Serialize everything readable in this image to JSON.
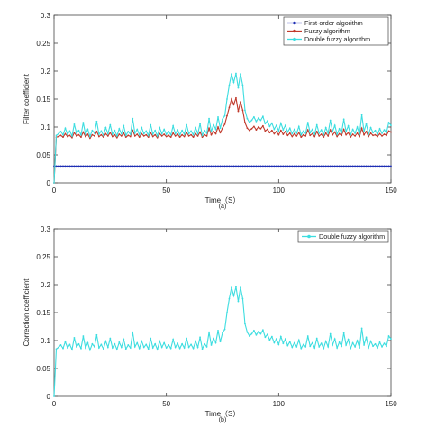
{
  "chart_data": [
    {
      "type": "line",
      "caption": "(a)",
      "xlabel": "Time（S）",
      "ylabel": "Filter coefficient",
      "xlim": [
        0,
        150
      ],
      "ylim": [
        0,
        0.3
      ],
      "xticks": [
        "0",
        "50",
        "100",
        "150"
      ],
      "yticks": [
        "0",
        "0.05",
        "0.1",
        "0.15",
        "0.2",
        "0.25",
        "0.3"
      ],
      "legend_position": "top-right",
      "x": [
        0,
        1,
        2,
        3,
        4,
        5,
        6,
        7,
        8,
        9,
        10,
        11,
        12,
        13,
        14,
        15,
        16,
        17,
        18,
        19,
        20,
        21,
        22,
        23,
        24,
        25,
        26,
        27,
        28,
        29,
        30,
        31,
        32,
        33,
        34,
        35,
        36,
        37,
        38,
        39,
        40,
        41,
        42,
        43,
        44,
        45,
        46,
        47,
        48,
        49,
        50,
        51,
        52,
        53,
        54,
        55,
        56,
        57,
        58,
        59,
        60,
        61,
        62,
        63,
        64,
        65,
        66,
        67,
        68,
        69,
        70,
        71,
        72,
        73,
        74,
        75,
        76,
        77,
        78,
        79,
        80,
        81,
        82,
        83,
        84,
        85,
        86,
        87,
        88,
        89,
        90,
        91,
        92,
        93,
        94,
        95,
        96,
        97,
        98,
        99,
        100,
        101,
        102,
        103,
        104,
        105,
        106,
        107,
        108,
        109,
        110,
        111,
        112,
        113,
        114,
        115,
        116,
        117,
        118,
        119,
        120,
        121,
        122,
        123,
        124,
        125,
        126,
        127,
        128,
        129,
        130,
        131,
        132,
        133,
        134,
        135,
        136,
        137,
        138,
        139,
        140,
        141,
        142,
        143,
        144,
        145,
        146,
        147,
        148,
        149,
        150
      ],
      "series": [
        {
          "name": "First-order algorithm",
          "color": "#1f2fb4",
          "marker": "dot",
          "values": [
            0.03,
            0.03,
            0.03,
            0.03,
            0.03,
            0.03,
            0.03,
            0.03,
            0.03,
            0.03,
            0.03,
            0.03,
            0.03,
            0.03,
            0.03,
            0.03,
            0.03,
            0.03,
            0.03,
            0.03,
            0.03,
            0.03,
            0.03,
            0.03,
            0.03,
            0.03,
            0.03,
            0.03,
            0.03,
            0.03,
            0.03,
            0.03,
            0.03,
            0.03,
            0.03,
            0.03,
            0.03,
            0.03,
            0.03,
            0.03,
            0.03,
            0.03,
            0.03,
            0.03,
            0.03,
            0.03,
            0.03,
            0.03,
            0.03,
            0.03,
            0.03,
            0.03,
            0.03,
            0.03,
            0.03,
            0.03,
            0.03,
            0.03,
            0.03,
            0.03,
            0.03,
            0.03,
            0.03,
            0.03,
            0.03,
            0.03,
            0.03,
            0.03,
            0.03,
            0.03,
            0.03,
            0.03,
            0.03,
            0.03,
            0.03,
            0.03,
            0.03,
            0.03,
            0.03,
            0.03,
            0.03,
            0.03,
            0.03,
            0.03,
            0.03,
            0.03,
            0.03,
            0.03,
            0.03,
            0.03,
            0.03,
            0.03,
            0.03,
            0.03,
            0.03,
            0.03,
            0.03,
            0.03,
            0.03,
            0.03,
            0.03,
            0.03,
            0.03,
            0.03,
            0.03,
            0.03,
            0.03,
            0.03,
            0.03,
            0.03,
            0.03,
            0.03,
            0.03,
            0.03,
            0.03,
            0.03,
            0.03,
            0.03,
            0.03,
            0.03,
            0.03,
            0.03,
            0.03,
            0.03,
            0.03,
            0.03,
            0.03,
            0.03,
            0.03,
            0.03,
            0.03,
            0.03,
            0.03,
            0.03,
            0.03,
            0.03,
            0.03,
            0.03,
            0.03,
            0.03,
            0.03,
            0.03,
            0.03,
            0.03,
            0.03,
            0.03,
            0.03,
            0.03,
            0.03,
            0.03,
            0.03
          ]
        },
        {
          "name": "Fuzzy algorithm",
          "color": "#c0392b",
          "marker": "dot",
          "values": [
            0.0,
            0.082,
            0.083,
            0.085,
            0.082,
            0.088,
            0.083,
            0.085,
            0.081,
            0.09,
            0.084,
            0.086,
            0.082,
            0.091,
            0.083,
            0.087,
            0.08,
            0.086,
            0.084,
            0.092,
            0.083,
            0.086,
            0.082,
            0.088,
            0.084,
            0.09,
            0.083,
            0.086,
            0.081,
            0.087,
            0.084,
            0.089,
            0.082,
            0.085,
            0.083,
            0.094,
            0.084,
            0.087,
            0.082,
            0.088,
            0.084,
            0.086,
            0.082,
            0.09,
            0.083,
            0.086,
            0.081,
            0.088,
            0.084,
            0.087,
            0.083,
            0.085,
            0.082,
            0.089,
            0.084,
            0.087,
            0.082,
            0.086,
            0.083,
            0.09,
            0.084,
            0.086,
            0.082,
            0.088,
            0.084,
            0.091,
            0.082,
            0.086,
            0.084,
            0.098,
            0.086,
            0.092,
            0.088,
            0.1,
            0.09,
            0.098,
            0.105,
            0.12,
            0.135,
            0.15,
            0.14,
            0.152,
            0.128,
            0.145,
            0.13,
            0.108,
            0.098,
            0.094,
            0.097,
            0.101,
            0.095,
            0.1,
            0.097,
            0.102,
            0.093,
            0.096,
            0.09,
            0.094,
            0.088,
            0.092,
            0.086,
            0.094,
            0.087,
            0.092,
            0.085,
            0.089,
            0.083,
            0.088,
            0.084,
            0.09,
            0.082,
            0.086,
            0.084,
            0.095,
            0.085,
            0.088,
            0.083,
            0.092,
            0.084,
            0.087,
            0.082,
            0.089,
            0.084,
            0.095,
            0.086,
            0.091,
            0.083,
            0.088,
            0.085,
            0.096,
            0.086,
            0.09,
            0.082,
            0.087,
            0.084,
            0.089,
            0.083,
            0.098,
            0.086,
            0.092,
            0.083,
            0.089,
            0.085,
            0.086,
            0.083,
            0.088,
            0.084,
            0.087,
            0.085,
            0.093,
            0.091
          ]
        },
        {
          "name": "Double fuzzy algorithm",
          "color": "#3ddde0",
          "marker": "dot",
          "values": [
            0.0,
            0.085,
            0.088,
            0.092,
            0.086,
            0.098,
            0.087,
            0.093,
            0.084,
            0.105,
            0.089,
            0.094,
            0.086,
            0.108,
            0.087,
            0.096,
            0.083,
            0.094,
            0.089,
            0.11,
            0.087,
            0.093,
            0.085,
            0.099,
            0.088,
            0.104,
            0.087,
            0.094,
            0.084,
            0.097,
            0.088,
            0.102,
            0.085,
            0.092,
            0.087,
            0.115,
            0.089,
            0.096,
            0.086,
            0.099,
            0.088,
            0.093,
            0.085,
            0.104,
            0.087,
            0.094,
            0.084,
            0.099,
            0.088,
            0.096,
            0.087,
            0.092,
            0.086,
            0.102,
            0.088,
            0.095,
            0.086,
            0.094,
            0.087,
            0.104,
            0.088,
            0.093,
            0.086,
            0.099,
            0.088,
            0.106,
            0.085,
            0.094,
            0.089,
            0.115,
            0.092,
            0.104,
            0.096,
            0.118,
            0.098,
            0.114,
            0.12,
            0.15,
            0.175,
            0.195,
            0.18,
            0.196,
            0.17,
            0.195,
            0.175,
            0.13,
            0.115,
            0.108,
            0.112,
            0.118,
            0.11,
            0.116,
            0.112,
            0.119,
            0.106,
            0.111,
            0.101,
            0.107,
            0.096,
            0.103,
            0.093,
            0.107,
            0.095,
            0.103,
            0.091,
            0.098,
            0.088,
            0.096,
            0.089,
            0.101,
            0.086,
            0.093,
            0.089,
            0.108,
            0.09,
            0.096,
            0.087,
            0.104,
            0.089,
            0.095,
            0.086,
            0.099,
            0.089,
            0.112,
            0.092,
            0.103,
            0.087,
            0.097,
            0.09,
            0.114,
            0.092,
            0.102,
            0.086,
            0.096,
            0.089,
            0.1,
            0.087,
            0.122,
            0.092,
            0.106,
            0.087,
            0.099,
            0.09,
            0.094,
            0.087,
            0.097,
            0.089,
            0.095,
            0.09,
            0.108,
            0.103
          ]
        }
      ]
    },
    {
      "type": "line",
      "caption": "(b)",
      "xlabel": "Time（S）",
      "ylabel": "Correction coefficient",
      "xlim": [
        0,
        150
      ],
      "ylim": [
        0,
        0.3
      ],
      "xticks": [
        "0",
        "50",
        "100",
        "150"
      ],
      "yticks": [
        "0",
        "0.05",
        "0.1",
        "0.15",
        "0.2",
        "0.25",
        "0.3"
      ],
      "legend_position": "top-right",
      "x": [
        0,
        1,
        2,
        3,
        4,
        5,
        6,
        7,
        8,
        9,
        10,
        11,
        12,
        13,
        14,
        15,
        16,
        17,
        18,
        19,
        20,
        21,
        22,
        23,
        24,
        25,
        26,
        27,
        28,
        29,
        30,
        31,
        32,
        33,
        34,
        35,
        36,
        37,
        38,
        39,
        40,
        41,
        42,
        43,
        44,
        45,
        46,
        47,
        48,
        49,
        50,
        51,
        52,
        53,
        54,
        55,
        56,
        57,
        58,
        59,
        60,
        61,
        62,
        63,
        64,
        65,
        66,
        67,
        68,
        69,
        70,
        71,
        72,
        73,
        74,
        75,
        76,
        77,
        78,
        79,
        80,
        81,
        82,
        83,
        84,
        85,
        86,
        87,
        88,
        89,
        90,
        91,
        92,
        93,
        94,
        95,
        96,
        97,
        98,
        99,
        100,
        101,
        102,
        103,
        104,
        105,
        106,
        107,
        108,
        109,
        110,
        111,
        112,
        113,
        114,
        115,
        116,
        117,
        118,
        119,
        120,
        121,
        122,
        123,
        124,
        125,
        126,
        127,
        128,
        129,
        130,
        131,
        132,
        133,
        134,
        135,
        136,
        137,
        138,
        139,
        140,
        141,
        142,
        143,
        144,
        145,
        146,
        147,
        148,
        149,
        150
      ],
      "series": [
        {
          "name": "Double fuzzy algorithm",
          "color": "#3ddde0",
          "marker": "dot",
          "values": [
            0.0,
            0.085,
            0.088,
            0.092,
            0.086,
            0.098,
            0.087,
            0.093,
            0.084,
            0.105,
            0.089,
            0.094,
            0.086,
            0.108,
            0.087,
            0.096,
            0.083,
            0.094,
            0.089,
            0.11,
            0.087,
            0.093,
            0.085,
            0.099,
            0.088,
            0.104,
            0.087,
            0.094,
            0.084,
            0.097,
            0.088,
            0.102,
            0.085,
            0.092,
            0.087,
            0.115,
            0.089,
            0.096,
            0.086,
            0.099,
            0.088,
            0.093,
            0.085,
            0.104,
            0.087,
            0.094,
            0.084,
            0.099,
            0.088,
            0.096,
            0.087,
            0.092,
            0.086,
            0.102,
            0.088,
            0.095,
            0.086,
            0.094,
            0.087,
            0.104,
            0.088,
            0.093,
            0.086,
            0.099,
            0.088,
            0.106,
            0.085,
            0.094,
            0.089,
            0.115,
            0.092,
            0.104,
            0.096,
            0.118,
            0.098,
            0.114,
            0.12,
            0.15,
            0.175,
            0.195,
            0.18,
            0.196,
            0.17,
            0.195,
            0.175,
            0.13,
            0.115,
            0.108,
            0.112,
            0.118,
            0.11,
            0.116,
            0.112,
            0.119,
            0.106,
            0.111,
            0.101,
            0.107,
            0.096,
            0.103,
            0.093,
            0.107,
            0.095,
            0.103,
            0.091,
            0.098,
            0.088,
            0.096,
            0.089,
            0.101,
            0.086,
            0.093,
            0.089,
            0.108,
            0.09,
            0.096,
            0.087,
            0.104,
            0.089,
            0.095,
            0.086,
            0.099,
            0.089,
            0.112,
            0.092,
            0.103,
            0.087,
            0.097,
            0.09,
            0.114,
            0.092,
            0.102,
            0.086,
            0.096,
            0.089,
            0.1,
            0.087,
            0.122,
            0.092,
            0.106,
            0.087,
            0.099,
            0.09,
            0.094,
            0.087,
            0.097,
            0.089,
            0.095,
            0.09,
            0.108,
            0.103
          ]
        }
      ]
    }
  ]
}
